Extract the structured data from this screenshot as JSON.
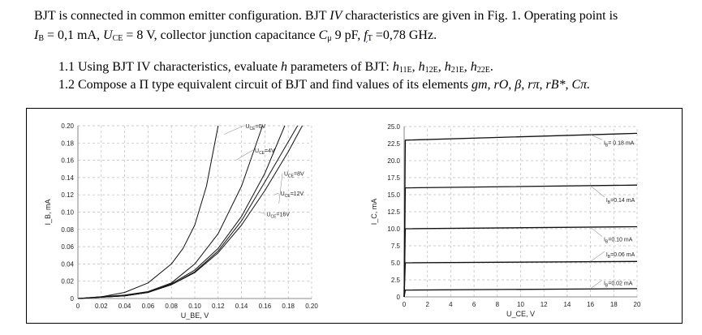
{
  "text": {
    "line1": "BJT is connected in common emitter configuration. BJT ",
    "line1_iv": "IV",
    "line1_end": " characteristics are given in Fig. 1. Operating point is",
    "ib": "I",
    "ib_sub": "B",
    "ib_val": " = 0,1 mA, ",
    "uce": "U",
    "uce_sub": "CE",
    "uce_val": " = 8 V, collector junction capacitance ",
    "cmu": "C",
    "cmu_sub": "μ",
    "cmu_val": " 9 pF, ",
    "ft": "f",
    "ft_sub": "T",
    "ft_val": " =0,78 GHz.",
    "q1": "1.1 Using BJT IV characteristics, evaluate ",
    "q1_h": "h",
    "q1_mid": " parameters of BJT: ",
    "q1_params": [
      {
        "h": "h",
        "sub": "11E"
      },
      {
        "h": "h",
        "sub": "12E"
      },
      {
        "h": "h",
        "sub": "21E"
      },
      {
        "h": "h",
        "sub": "22E"
      }
    ],
    "q2": "1.2 Compose a Π type equivalent circuit of BJT and find values of its elements ",
    "q2_elems": "gm, rO, β, rπ, rB*, Cπ."
  },
  "chart_data": [
    {
      "type": "line",
      "xlabel": "U_BE, V",
      "ylabel": "I_B, mA",
      "xlim": [
        0,
        0.2
      ],
      "ylim": [
        0,
        0.2
      ],
      "grid": true,
      "xticks": [
        "0",
        "0.02",
        "0.04",
        "0.06",
        "0.08",
        "0.10",
        "0.12",
        "0.14",
        "0.16",
        "0.18",
        "0.20"
      ],
      "yticks": [
        "0",
        "0.02",
        "0.04",
        "0.06",
        "0.08",
        "0.10",
        "0.12",
        "0.14",
        "0.16",
        "0.18",
        "0.20"
      ],
      "series": [
        {
          "name": "UCE=0V",
          "x": [
            0,
            0.02,
            0.04,
            0.06,
            0.08,
            0.09,
            0.1,
            0.11,
            0.12
          ],
          "y": [
            0,
            0.002,
            0.007,
            0.018,
            0.04,
            0.058,
            0.085,
            0.13,
            0.2
          ]
        },
        {
          "name": "UCE=4V",
          "x": [
            0,
            0.04,
            0.06,
            0.08,
            0.1,
            0.12,
            0.14,
            0.158
          ],
          "y": [
            0,
            0.004,
            0.008,
            0.018,
            0.04,
            0.075,
            0.13,
            0.2
          ]
        },
        {
          "name": "UCE=8V",
          "x": [
            0,
            0.04,
            0.06,
            0.08,
            0.1,
            0.12,
            0.14,
            0.16,
            0.18,
            0.192
          ],
          "y": [
            0,
            0.003,
            0.007,
            0.016,
            0.03,
            0.053,
            0.085,
            0.125,
            0.17,
            0.2
          ]
        },
        {
          "name": "UCE=12V",
          "x": [
            0,
            0.04,
            0.06,
            0.08,
            0.1,
            0.12,
            0.14,
            0.16,
            0.188
          ],
          "y": [
            0,
            0.003,
            0.007,
            0.016,
            0.031,
            0.055,
            0.09,
            0.135,
            0.2
          ]
        },
        {
          "name": "UCE=16V",
          "x": [
            0,
            0.04,
            0.06,
            0.08,
            0.1,
            0.12,
            0.14,
            0.16,
            0.177
          ],
          "y": [
            0,
            0.003,
            0.007,
            0.017,
            0.033,
            0.058,
            0.095,
            0.145,
            0.2
          ]
        }
      ]
    },
    {
      "type": "line",
      "xlabel": "U_CE, V",
      "ylabel": "I_C, mA",
      "xlim": [
        0,
        20
      ],
      "ylim": [
        0,
        25
      ],
      "grid": true,
      "xticks": [
        "0",
        "2",
        "4",
        "6",
        "8",
        "10",
        "12",
        "14",
        "16",
        "18",
        "20"
      ],
      "yticks": [
        "0",
        "2.5",
        "5.0",
        "7.5",
        "10.0",
        "12.5",
        "15.0",
        "17.5",
        "20.0",
        "22.5",
        "25.0"
      ],
      "series": [
        {
          "name": "IB= 0.18 mA",
          "x": [
            0,
            0.1,
            20
          ],
          "y": [
            0,
            23,
            24
          ]
        },
        {
          "name": "IB=0.14 mA",
          "x": [
            0,
            0.1,
            20
          ],
          "y": [
            0,
            16,
            16.4
          ]
        },
        {
          "name": "IB=0.10 mA",
          "x": [
            0,
            0.1,
            20
          ],
          "y": [
            0,
            10,
            10.3
          ]
        },
        {
          "name": "IB=0.06 mA",
          "x": [
            0,
            0.1,
            20
          ],
          "y": [
            0,
            5,
            5.2
          ]
        },
        {
          "name": "IB=0.02 mA",
          "x": [
            0,
            0.1,
            20
          ],
          "y": [
            0,
            1,
            1.2
          ]
        }
      ]
    }
  ]
}
